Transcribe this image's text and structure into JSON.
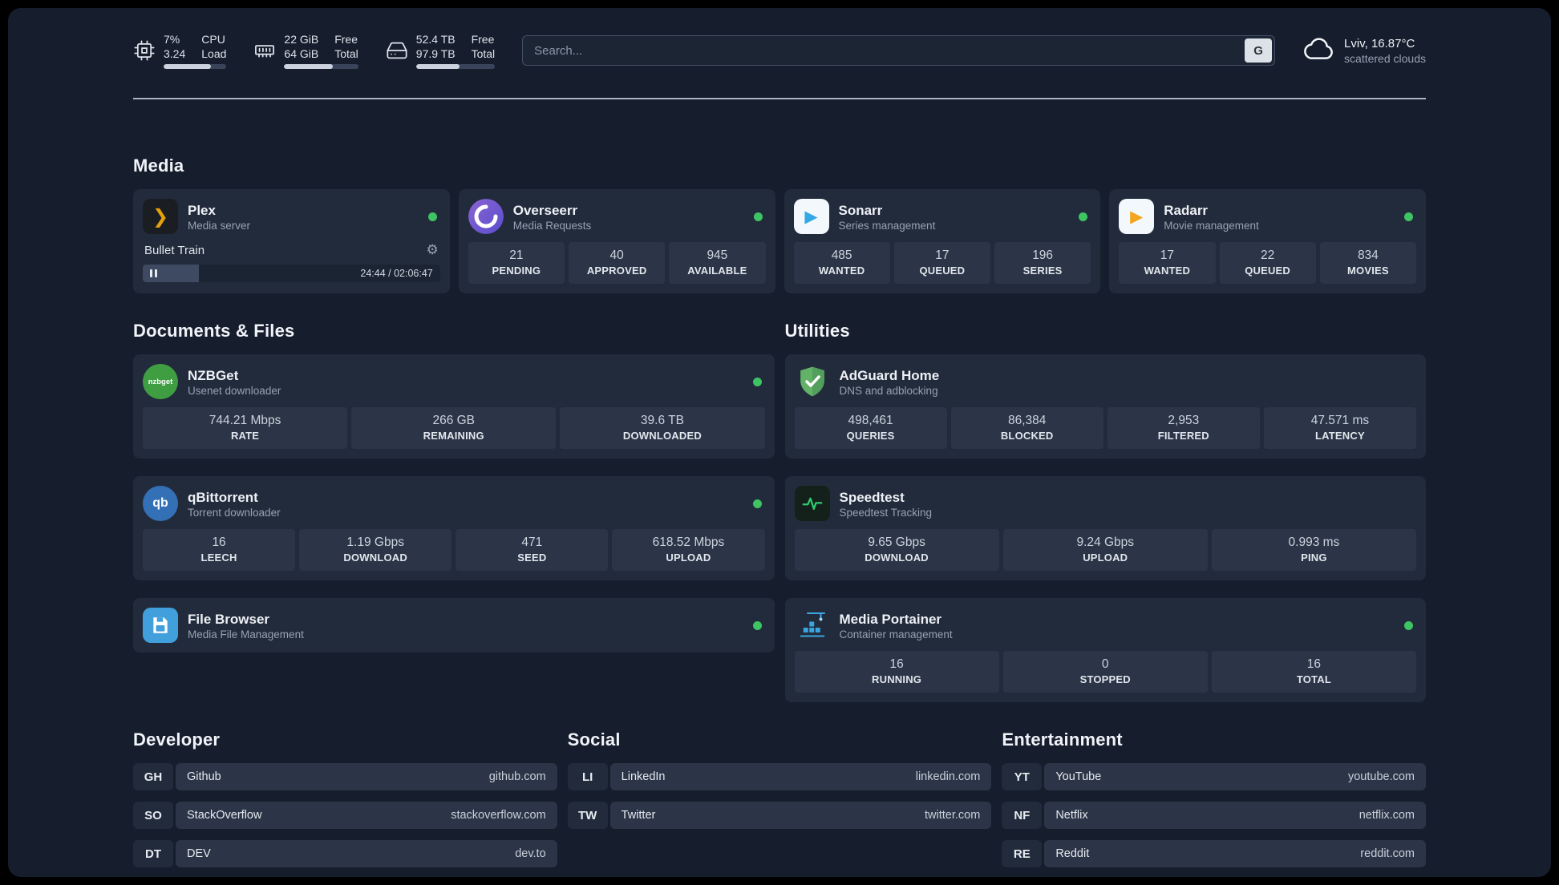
{
  "colors": {
    "page_bg": "#161d2c",
    "card_bg": "#222b3b",
    "tile_bg": "#2b3547",
    "status_online": "#3ec463",
    "plex_accent": "#e5a00d",
    "sonarr_accent": "#33a8e5",
    "radarr_accent": "#f3a51f"
  },
  "icons": {
    "gear": "⚙",
    "plex_chevron": "❯",
    "play": "▶",
    "nzbget_text": "nzbget",
    "qbittorrent_text": "qb"
  },
  "topbar": {
    "metrics": [
      {
        "name": "cpu",
        "value_top": "7%",
        "value_bottom": "3.24",
        "label_top": "CPU",
        "label_bottom": "Load",
        "bar_percent": 75
      },
      {
        "name": "memory",
        "value_top": "22 GiB",
        "value_bottom": "64 GiB",
        "label_top": "Free",
        "label_bottom": "Total",
        "bar_percent": 66
      },
      {
        "name": "disk",
        "value_top": "52.4 TB",
        "value_bottom": "97.9 TB",
        "label_top": "Free",
        "label_bottom": "Total",
        "bar_percent": 55
      }
    ],
    "search": {
      "placeholder": "Search...",
      "engine_label": "G"
    },
    "weather": {
      "location": "Lviv, 16.87°C",
      "condition": "scattered clouds"
    }
  },
  "media": {
    "title": "Media",
    "plex": {
      "title": "Plex",
      "subtitle": "Media server",
      "online": true,
      "now_playing": "Bullet Train",
      "elapsed_total": "24:44 / 02:06:47",
      "progress_percent": 19
    },
    "overseerr": {
      "title": "Overseerr",
      "subtitle": "Media Requests",
      "online": true,
      "stats": [
        {
          "value": "21",
          "label": "PENDING"
        },
        {
          "value": "40",
          "label": "APPROVED"
        },
        {
          "value": "945",
          "label": "AVAILABLE"
        }
      ]
    },
    "sonarr": {
      "title": "Sonarr",
      "subtitle": "Series management",
      "online": true,
      "stats": [
        {
          "value": "485",
          "label": "WANTED"
        },
        {
          "value": "17",
          "label": "QUEUED"
        },
        {
          "value": "196",
          "label": "SERIES"
        }
      ]
    },
    "radarr": {
      "title": "Radarr",
      "subtitle": "Movie management",
      "online": true,
      "stats": [
        {
          "value": "17",
          "label": "WANTED"
        },
        {
          "value": "22",
          "label": "QUEUED"
        },
        {
          "value": "834",
          "label": "MOVIES"
        }
      ]
    }
  },
  "documents": {
    "title": "Documents & Files",
    "nzbget": {
      "title": "NZBGet",
      "subtitle": "Usenet downloader",
      "online": true,
      "stats": [
        {
          "value": "744.21 Mbps",
          "label": "RATE"
        },
        {
          "value": "266 GB",
          "label": "REMAINING"
        },
        {
          "value": "39.6 TB",
          "label": "DOWNLOADED"
        }
      ]
    },
    "qbittorrent": {
      "title": "qBittorrent",
      "subtitle": "Torrent downloader",
      "online": true,
      "stats": [
        {
          "value": "16",
          "label": "LEECH"
        },
        {
          "value": "1.19 Gbps",
          "label": "DOWNLOAD"
        },
        {
          "value": "471",
          "label": "SEED"
        },
        {
          "value": "618.52 Mbps",
          "label": "UPLOAD"
        }
      ]
    },
    "filebrowser": {
      "title": "File Browser",
      "subtitle": "Media File Management",
      "online": true
    }
  },
  "utilities": {
    "title": "Utilities",
    "adguard": {
      "title": "AdGuard Home",
      "subtitle": "DNS and adblocking",
      "stats": [
        {
          "value": "498,461",
          "label": "QUERIES"
        },
        {
          "value": "86,384",
          "label": "BLOCKED"
        },
        {
          "value": "2,953",
          "label": "FILTERED"
        },
        {
          "value": "47.571 ms",
          "label": "LATENCY"
        }
      ]
    },
    "speedtest": {
      "title": "Speedtest",
      "subtitle": "Speedtest Tracking",
      "stats": [
        {
          "value": "9.65 Gbps",
          "label": "DOWNLOAD"
        },
        {
          "value": "9.24 Gbps",
          "label": "UPLOAD"
        },
        {
          "value": "0.993 ms",
          "label": "PING"
        }
      ]
    },
    "portainer": {
      "title": "Media Portainer",
      "subtitle": "Container management",
      "online": true,
      "stats": [
        {
          "value": "16",
          "label": "RUNNING"
        },
        {
          "value": "0",
          "label": "STOPPED"
        },
        {
          "value": "16",
          "label": "TOTAL"
        }
      ]
    }
  },
  "bookmarks": {
    "developer": {
      "title": "Developer",
      "items": [
        {
          "abbr": "GH",
          "name": "Github",
          "url": "github.com"
        },
        {
          "abbr": "SO",
          "name": "StackOverflow",
          "url": "stackoverflow.com"
        },
        {
          "abbr": "DT",
          "name": "DEV",
          "url": "dev.to"
        }
      ]
    },
    "social": {
      "title": "Social",
      "items": [
        {
          "abbr": "LI",
          "name": "LinkedIn",
          "url": "linkedin.com"
        },
        {
          "abbr": "TW",
          "name": "Twitter",
          "url": "twitter.com"
        }
      ]
    },
    "entertainment": {
      "title": "Entertainment",
      "items": [
        {
          "abbr": "YT",
          "name": "YouTube",
          "url": "youtube.com"
        },
        {
          "abbr": "NF",
          "name": "Netflix",
          "url": "netflix.com"
        },
        {
          "abbr": "RE",
          "name": "Reddit",
          "url": "reddit.com"
        }
      ]
    }
  }
}
